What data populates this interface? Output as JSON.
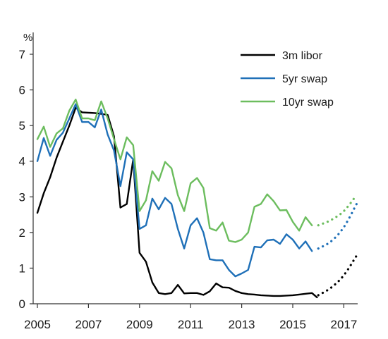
{
  "chart_data": {
    "type": "line",
    "title": "",
    "xlabel": "",
    "ylabel": "%",
    "xlim": [
      2005,
      2017.6
    ],
    "ylim": [
      0,
      7
    ],
    "x_ticks": [
      2005,
      2007,
      2009,
      2011,
      2013,
      2015,
      2017
    ],
    "x_tick_labels": [
      "2005",
      "2007",
      "2009",
      "2011",
      "2013",
      "2015",
      "2017"
    ],
    "y_ticks": [
      0,
      1,
      2,
      3,
      4,
      5,
      6,
      7
    ],
    "y_tick_labels": [
      "0",
      "1",
      "2",
      "3",
      "4",
      "5",
      "6",
      "7"
    ],
    "grid": false,
    "legend_position": "top-right",
    "series": [
      {
        "name": "3m libor",
        "color": "#000000",
        "values": [
          [
            2005.0,
            2.55
          ],
          [
            2005.25,
            3.1
          ],
          [
            2005.5,
            3.55
          ],
          [
            2005.75,
            4.1
          ],
          [
            2006.0,
            4.55
          ],
          [
            2006.25,
            5.0
          ],
          [
            2006.5,
            5.5
          ],
          [
            2006.75,
            5.37
          ],
          [
            2007.0,
            5.36
          ],
          [
            2007.25,
            5.35
          ],
          [
            2007.5,
            5.33
          ],
          [
            2007.75,
            5.3
          ],
          [
            2008.0,
            4.7
          ],
          [
            2008.25,
            2.7
          ],
          [
            2008.5,
            2.8
          ],
          [
            2008.75,
            4.05
          ],
          [
            2009.0,
            1.43
          ],
          [
            2009.25,
            1.18
          ],
          [
            2009.5,
            0.6
          ],
          [
            2009.75,
            0.3
          ],
          [
            2010.0,
            0.27
          ],
          [
            2010.25,
            0.3
          ],
          [
            2010.5,
            0.53
          ],
          [
            2010.75,
            0.29
          ],
          [
            2011.0,
            0.3
          ],
          [
            2011.25,
            0.3
          ],
          [
            2011.5,
            0.25
          ],
          [
            2011.75,
            0.35
          ],
          [
            2012.0,
            0.57
          ],
          [
            2012.25,
            0.46
          ],
          [
            2012.5,
            0.45
          ],
          [
            2012.75,
            0.36
          ],
          [
            2013.0,
            0.3
          ],
          [
            2013.25,
            0.27
          ],
          [
            2013.5,
            0.26
          ],
          [
            2013.75,
            0.24
          ],
          [
            2014.0,
            0.23
          ],
          [
            2014.25,
            0.22
          ],
          [
            2014.5,
            0.22
          ],
          [
            2014.75,
            0.23
          ],
          [
            2015.0,
            0.24
          ],
          [
            2015.25,
            0.26
          ],
          [
            2015.5,
            0.28
          ],
          [
            2015.75,
            0.3
          ],
          [
            2015.95,
            0.18
          ]
        ],
        "forecast": [
          [
            2016.0,
            0.24
          ],
          [
            2016.5,
            0.45
          ],
          [
            2017.0,
            0.8
          ],
          [
            2017.5,
            1.35
          ]
        ]
      },
      {
        "name": "5yr swap",
        "color": "#1f70b8",
        "values": [
          [
            2005.0,
            4.0
          ],
          [
            2005.25,
            4.65
          ],
          [
            2005.5,
            4.15
          ],
          [
            2005.75,
            4.6
          ],
          [
            2006.0,
            4.8
          ],
          [
            2006.25,
            5.2
          ],
          [
            2006.5,
            5.6
          ],
          [
            2006.75,
            5.1
          ],
          [
            2007.0,
            5.1
          ],
          [
            2007.25,
            4.95
          ],
          [
            2007.5,
            5.45
          ],
          [
            2007.75,
            4.75
          ],
          [
            2008.0,
            4.3
          ],
          [
            2008.25,
            3.3
          ],
          [
            2008.5,
            4.25
          ],
          [
            2008.75,
            4.05
          ],
          [
            2009.0,
            2.1
          ],
          [
            2009.25,
            2.2
          ],
          [
            2009.5,
            2.95
          ],
          [
            2009.75,
            2.65
          ],
          [
            2010.0,
            2.97
          ],
          [
            2010.25,
            2.8
          ],
          [
            2010.5,
            2.1
          ],
          [
            2010.75,
            1.55
          ],
          [
            2011.0,
            2.2
          ],
          [
            2011.25,
            2.4
          ],
          [
            2011.5,
            2.0
          ],
          [
            2011.75,
            1.25
          ],
          [
            2012.0,
            1.22
          ],
          [
            2012.25,
            1.22
          ],
          [
            2012.5,
            0.95
          ],
          [
            2012.75,
            0.77
          ],
          [
            2013.0,
            0.85
          ],
          [
            2013.25,
            0.95
          ],
          [
            2013.5,
            1.6
          ],
          [
            2013.75,
            1.58
          ],
          [
            2014.0,
            1.78
          ],
          [
            2014.25,
            1.8
          ],
          [
            2014.5,
            1.68
          ],
          [
            2014.75,
            1.95
          ],
          [
            2015.0,
            1.8
          ],
          [
            2015.25,
            1.55
          ],
          [
            2015.5,
            1.75
          ],
          [
            2015.75,
            1.48
          ]
        ],
        "forecast": [
          [
            2016.0,
            1.55
          ],
          [
            2016.5,
            1.75
          ],
          [
            2017.0,
            2.15
          ],
          [
            2017.5,
            2.8
          ]
        ]
      },
      {
        "name": "10yr swap",
        "color": "#6cbd5e",
        "values": [
          [
            2005.0,
            4.62
          ],
          [
            2005.25,
            4.97
          ],
          [
            2005.5,
            4.4
          ],
          [
            2005.75,
            4.78
          ],
          [
            2006.0,
            4.92
          ],
          [
            2006.25,
            5.42
          ],
          [
            2006.5,
            5.73
          ],
          [
            2006.75,
            5.2
          ],
          [
            2007.0,
            5.2
          ],
          [
            2007.25,
            5.15
          ],
          [
            2007.5,
            5.68
          ],
          [
            2007.75,
            5.2
          ],
          [
            2008.0,
            4.62
          ],
          [
            2008.25,
            4.05
          ],
          [
            2008.5,
            4.67
          ],
          [
            2008.75,
            4.45
          ],
          [
            2009.0,
            2.6
          ],
          [
            2009.25,
            2.9
          ],
          [
            2009.5,
            3.72
          ],
          [
            2009.75,
            3.45
          ],
          [
            2010.0,
            3.98
          ],
          [
            2010.25,
            3.8
          ],
          [
            2010.5,
            3.05
          ],
          [
            2010.75,
            2.6
          ],
          [
            2011.0,
            3.38
          ],
          [
            2011.25,
            3.53
          ],
          [
            2011.5,
            3.25
          ],
          [
            2011.75,
            2.12
          ],
          [
            2012.0,
            2.05
          ],
          [
            2012.25,
            2.28
          ],
          [
            2012.5,
            1.77
          ],
          [
            2012.75,
            1.73
          ],
          [
            2013.0,
            1.8
          ],
          [
            2013.25,
            2.0
          ],
          [
            2013.5,
            2.72
          ],
          [
            2013.75,
            2.8
          ],
          [
            2014.0,
            3.07
          ],
          [
            2014.25,
            2.88
          ],
          [
            2014.5,
            2.62
          ],
          [
            2014.75,
            2.63
          ],
          [
            2015.0,
            2.3
          ],
          [
            2015.25,
            2.05
          ],
          [
            2015.5,
            2.43
          ],
          [
            2015.75,
            2.2
          ]
        ],
        "forecast": [
          [
            2016.0,
            2.2
          ],
          [
            2016.5,
            2.35
          ],
          [
            2017.0,
            2.6
          ],
          [
            2017.5,
            3.05
          ]
        ]
      }
    ]
  }
}
